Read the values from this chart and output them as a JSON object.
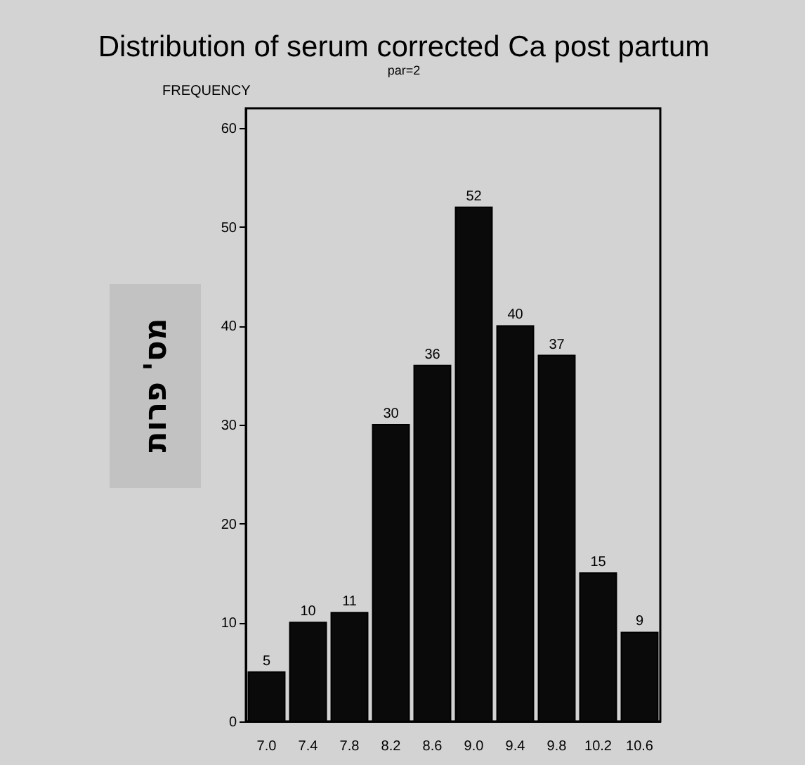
{
  "chart_data": {
    "type": "bar",
    "title": "Distribution of serum corrected Ca post partum",
    "subtitle": "par=2",
    "ylabel": "FREQUENCY",
    "annotations": [
      "מס' פרות"
    ],
    "categories": [
      "7.0",
      "7.4",
      "7.8",
      "8.2",
      "8.6",
      "9.0",
      "9.4",
      "9.8",
      "10.2",
      "10.6"
    ],
    "values": [
      5,
      10,
      11,
      30,
      36,
      52,
      40,
      37,
      15,
      9
    ],
    "color": "#0a0a0a",
    "ylim": [
      0,
      62
    ],
    "yticks": [
      0,
      10,
      20,
      30,
      40,
      50,
      60
    ],
    "data_labels": true,
    "grid": false
  }
}
